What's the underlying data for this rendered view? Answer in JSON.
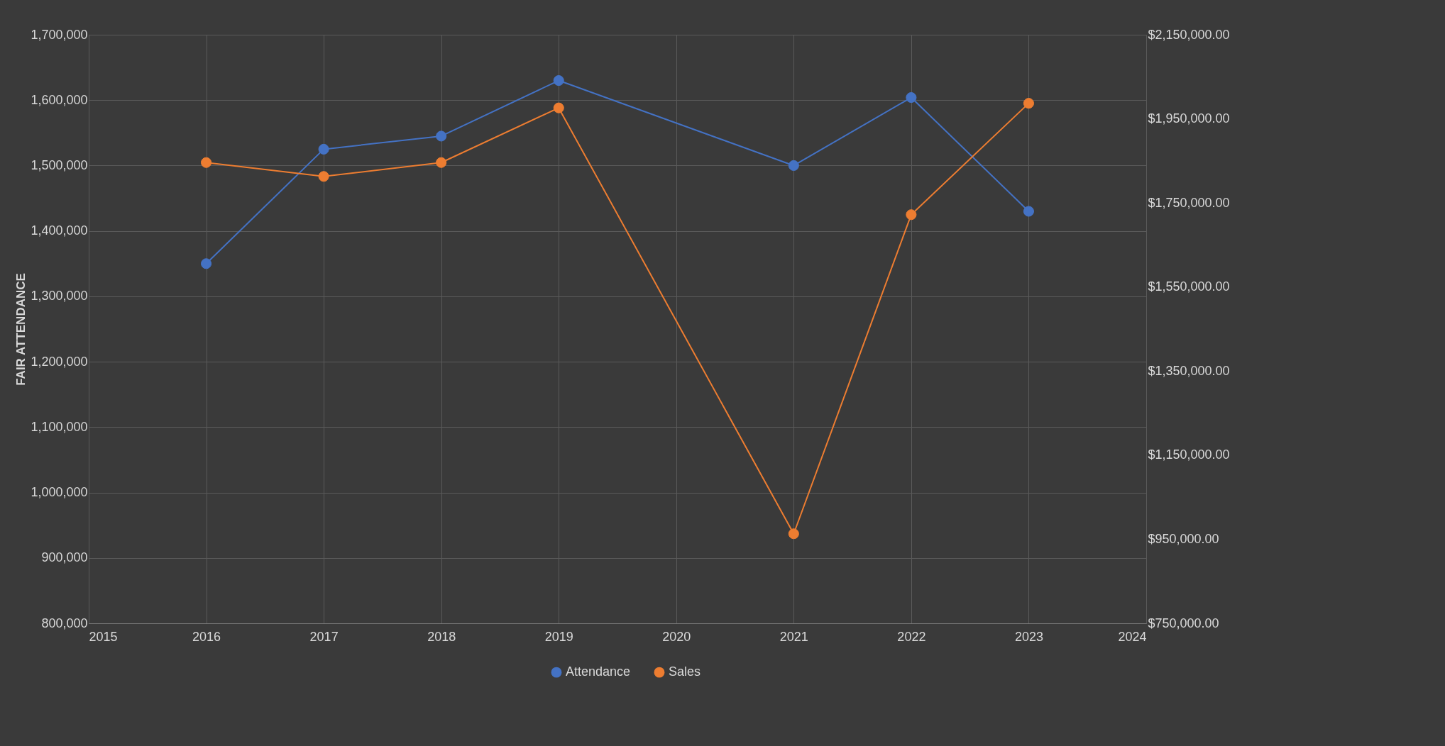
{
  "chart_data": {
    "type": "line",
    "ylabel": "FAIR ATTENDANCE",
    "x": [
      2016,
      2017,
      2018,
      2019,
      2021,
      2022,
      2023
    ],
    "series": [
      {
        "name": "Attendance",
        "color": "#4472c4",
        "values": [
          1350000,
          1525000,
          1545000,
          1630000,
          1500000,
          1604000,
          1430000
        ]
      },
      {
        "name": "Sales",
        "color": "#ed7d31",
        "axis": "y2",
        "values": [
          1846000,
          1813000,
          1846000,
          1976000,
          963000,
          1722000,
          1987000
        ]
      }
    ],
    "xlim": [
      2015,
      2024
    ],
    "xticks": [
      2015,
      2016,
      2017,
      2018,
      2019,
      2020,
      2021,
      2022,
      2023,
      2024
    ],
    "ylim": [
      800000,
      1700000
    ],
    "yticks": [
      {
        "value": 800000,
        "label": "800,000"
      },
      {
        "value": 900000,
        "label": "900,000"
      },
      {
        "value": 1000000,
        "label": "1,000,000"
      },
      {
        "value": 1100000,
        "label": "1,100,000"
      },
      {
        "value": 1200000,
        "label": "1,200,000"
      },
      {
        "value": 1300000,
        "label": "1,300,000"
      },
      {
        "value": 1400000,
        "label": "1,400,000"
      },
      {
        "value": 1500000,
        "label": "1,500,000"
      },
      {
        "value": 1600000,
        "label": "1,600,000"
      },
      {
        "value": 1700000,
        "label": "1,700,000"
      }
    ],
    "y2lim": [
      750000,
      2150000
    ],
    "y2ticks": [
      {
        "value": 750000,
        "label": "$750,000.00"
      },
      {
        "value": 950000,
        "label": "$950,000.00"
      },
      {
        "value": 1150000,
        "label": "$1,150,000.00"
      },
      {
        "value": 1350000,
        "label": "$1,350,000.00"
      },
      {
        "value": 1550000,
        "label": "$1,550,000.00"
      },
      {
        "value": 1750000,
        "label": "$1,750,000.00"
      },
      {
        "value": 1950000,
        "label": "$1,950,000.00"
      },
      {
        "value": 2150000,
        "label": "$2,150,000.00"
      }
    ],
    "grid": true,
    "legend": "bottom",
    "marker": "circle",
    "line_style": "solid"
  }
}
